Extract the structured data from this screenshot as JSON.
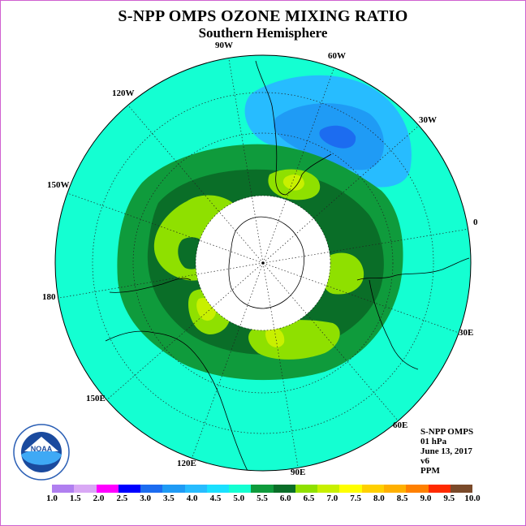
{
  "title": "S-NPP OMPS OZONE MIXING RATIO",
  "subtitle": "Southern Hemisphere",
  "longitude_labels": [
    "90W",
    "60W",
    "30W",
    "0",
    "30E",
    "60E",
    "90E",
    "120E",
    "150E",
    "180",
    "150W",
    "120W"
  ],
  "info": {
    "instrument": "S-NPP OMPS",
    "level": "01 hPa",
    "date": "June 13, 2017",
    "version": "v6",
    "units": "PPM"
  },
  "legend": {
    "ticks": [
      "1.0",
      "1.5",
      "2.0",
      "2.5",
      "3.0",
      "3.5",
      "4.0",
      "4.5",
      "5.0",
      "5.5",
      "6.0",
      "6.5",
      "7.0",
      "7.5",
      "8.0",
      "8.5",
      "9.0",
      "9.5",
      "10.0"
    ],
    "colors": [
      "#b07ff0",
      "#d9a8f5",
      "#ff00ff",
      "#0000ff",
      "#1c6cf0",
      "#1f9bf5",
      "#27bcff",
      "#1ae0ff",
      "#14ffd2",
      "#0f9b3c",
      "#0a6e28",
      "#8fe000",
      "#c8f000",
      "#ffff00",
      "#ffd000",
      "#ffb000",
      "#ff8000",
      "#ff2a00",
      "#7a4a2a"
    ]
  },
  "colors": {
    "background_ozone": "#14ffd2",
    "deep_green": "#0a6e28",
    "mid_green": "#0f9b3c",
    "yellow_green": "#8fe000",
    "light_yellow_green": "#c8f000",
    "light_blue": "#27bcff",
    "mid_blue": "#1f9bf5",
    "dark_blue": "#1c6cf0",
    "polar_night": "#ffffff"
  },
  "logo": {
    "name": "noaa-logo",
    "text": "NOAA"
  }
}
